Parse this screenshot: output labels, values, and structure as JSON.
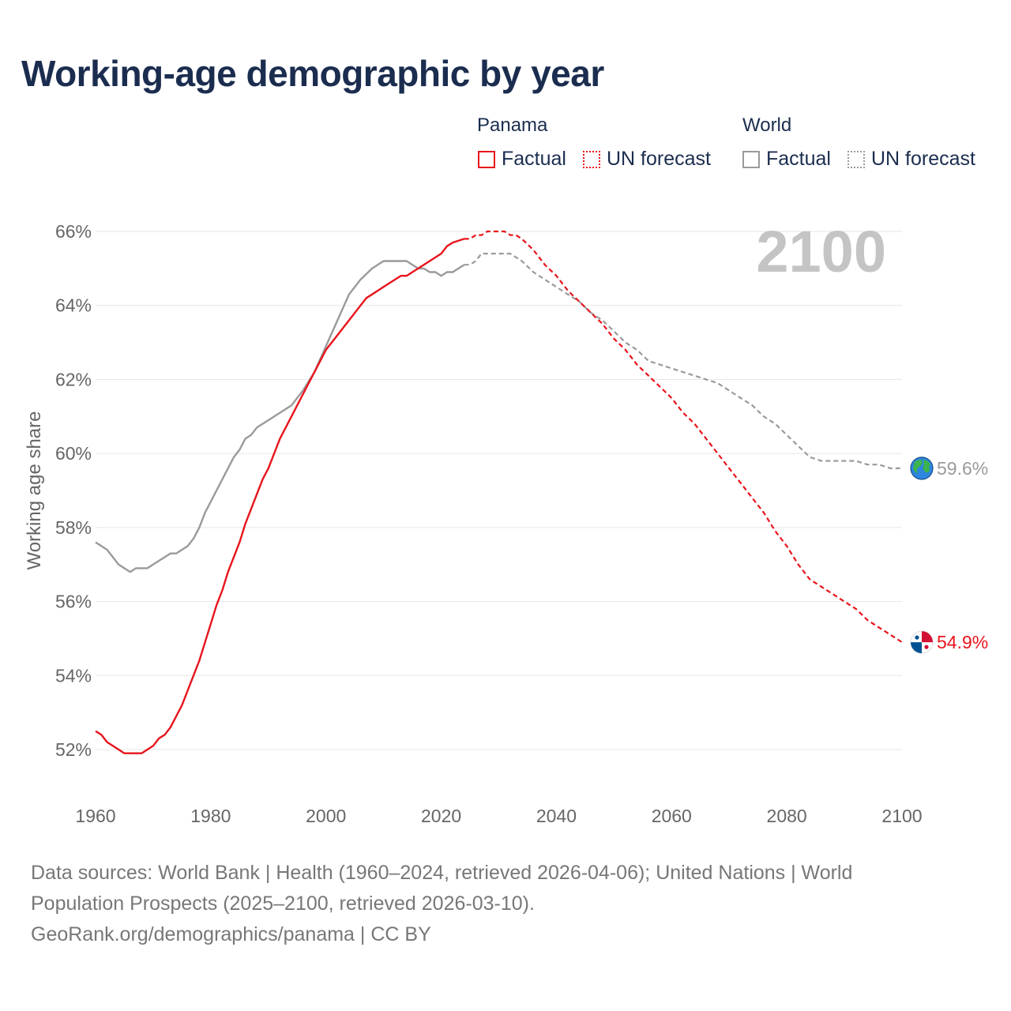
{
  "title": "Working-age demographic by year",
  "legend": {
    "panama_title": "Panama",
    "world_title": "World",
    "panama_factual": "Factual",
    "panama_forecast": "UN forecast",
    "world_factual": "Factual",
    "world_forecast": "UN forecast"
  },
  "colors": {
    "panama": "#e8141c",
    "world": "#9a9a9a",
    "grid": "#e6e6e6",
    "axis_text": "#666666",
    "year_label": "#c4c4c4"
  },
  "footer": {
    "line1": "Data sources: World Bank | Health (1960–2024, retrieved 2026-04-06); United Nations | World",
    "line2": "Population Prospects (2025–2100, retrieved 2026-03-10).",
    "line3": "GeoRank.org/demographics/panama | CC BY"
  },
  "chart_data": {
    "type": "line",
    "title": "Working-age demographic by year",
    "ylabel": "Working age share",
    "xlabel": "",
    "xlim": [
      1960,
      2100
    ],
    "ylim": [
      51,
      66.5
    ],
    "x_ticks": [
      1960,
      1980,
      2000,
      2020,
      2040,
      2060,
      2080,
      2100
    ],
    "y_ticks": [
      52,
      54,
      56,
      58,
      60,
      62,
      64,
      66
    ],
    "y_tick_labels": [
      "52%",
      "54%",
      "56%",
      "58%",
      "60%",
      "62%",
      "64%",
      "66%"
    ],
    "x_tick_labels": [
      "1960",
      "1980",
      "2000",
      "2020",
      "2040",
      "2060",
      "2080",
      "2100"
    ],
    "current_year_label": "2100",
    "series": [
      {
        "name": "Panama",
        "factual": {
          "x": [
            1960,
            1961,
            1962,
            1963,
            1964,
            1965,
            1966,
            1967,
            1968,
            1969,
            1970,
            1971,
            1972,
            1973,
            1974,
            1975,
            1976,
            1977,
            1978,
            1979,
            1980,
            1981,
            1982,
            1983,
            1984,
            1985,
            1986,
            1987,
            1988,
            1989,
            1990,
            1992,
            1994,
            1996,
            1998,
            2000,
            2002,
            2004,
            2006,
            2007,
            2008,
            2010,
            2012,
            2013,
            2014,
            2016,
            2018,
            2020,
            2021,
            2022,
            2024
          ],
          "y": [
            52.5,
            52.4,
            52.2,
            52.1,
            52.0,
            51.9,
            51.9,
            51.9,
            51.9,
            52.0,
            52.1,
            52.3,
            52.4,
            52.6,
            52.9,
            53.2,
            53.6,
            54.0,
            54.4,
            54.9,
            55.4,
            55.9,
            56.3,
            56.8,
            57.2,
            57.6,
            58.1,
            58.5,
            58.9,
            59.3,
            59.6,
            60.4,
            61.0,
            61.6,
            62.2,
            62.8,
            63.2,
            63.6,
            64.0,
            64.2,
            64.3,
            64.5,
            64.7,
            64.8,
            64.8,
            65.0,
            65.2,
            65.4,
            65.6,
            65.7,
            65.8
          ]
        },
        "forecast": {
          "x": [
            2024,
            2025,
            2026,
            2027,
            2028,
            2029,
            2030,
            2031,
            2032,
            2033,
            2034,
            2036,
            2038,
            2040,
            2042,
            2044,
            2046,
            2048,
            2050,
            2052,
            2054,
            2056,
            2058,
            2060,
            2062,
            2064,
            2066,
            2068,
            2070,
            2072,
            2074,
            2076,
            2078,
            2080,
            2082,
            2084,
            2086,
            2088,
            2090,
            2092,
            2094,
            2096,
            2098,
            2100
          ],
          "y": [
            65.8,
            65.8,
            65.9,
            65.9,
            66.0,
            66.0,
            66.0,
            66.0,
            65.9,
            65.9,
            65.8,
            65.5,
            65.1,
            64.8,
            64.4,
            64.1,
            63.8,
            63.5,
            63.1,
            62.8,
            62.4,
            62.1,
            61.8,
            61.5,
            61.1,
            60.8,
            60.4,
            60.0,
            59.6,
            59.2,
            58.8,
            58.4,
            57.9,
            57.5,
            57.0,
            56.6,
            56.4,
            56.2,
            56.0,
            55.8,
            55.5,
            55.3,
            55.1,
            54.9
          ]
        },
        "end_label": "54.9%"
      },
      {
        "name": "World",
        "factual": {
          "x": [
            1960,
            1962,
            1964,
            1966,
            1967,
            1969,
            1971,
            1973,
            1974,
            1976,
            1977,
            1978,
            1979,
            1980,
            1982,
            1984,
            1985,
            1986,
            1987,
            1988,
            1990,
            1992,
            1994,
            1996,
            1998,
            2000,
            2002,
            2004,
            2006,
            2008,
            2010,
            2012,
            2014,
            2015,
            2016,
            2017,
            2018,
            2019,
            2020,
            2021,
            2022,
            2023,
            2024
          ],
          "y": [
            57.6,
            57.4,
            57.0,
            56.8,
            56.9,
            56.9,
            57.1,
            57.3,
            57.3,
            57.5,
            57.7,
            58.0,
            58.4,
            58.7,
            59.3,
            59.9,
            60.1,
            60.4,
            60.5,
            60.7,
            60.9,
            61.1,
            61.3,
            61.7,
            62.2,
            62.9,
            63.6,
            64.3,
            64.7,
            65.0,
            65.2,
            65.2,
            65.2,
            65.1,
            65.0,
            65.0,
            64.9,
            64.9,
            64.8,
            64.9,
            64.9,
            65.0,
            65.1
          ]
        },
        "forecast": {
          "x": [
            2024,
            2025,
            2026,
            2027,
            2028,
            2029,
            2030,
            2031,
            2032,
            2033,
            2034,
            2036,
            2038,
            2040,
            2042,
            2044,
            2046,
            2048,
            2050,
            2052,
            2054,
            2056,
            2058,
            2060,
            2062,
            2064,
            2066,
            2068,
            2070,
            2072,
            2074,
            2076,
            2078,
            2080,
            2082,
            2084,
            2086,
            2088,
            2090,
            2092,
            2094,
            2096,
            2098,
            2100
          ],
          "y": [
            65.1,
            65.1,
            65.2,
            65.4,
            65.4,
            65.4,
            65.4,
            65.4,
            65.4,
            65.3,
            65.2,
            64.9,
            64.7,
            64.5,
            64.3,
            64.1,
            63.8,
            63.6,
            63.3,
            63.0,
            62.8,
            62.5,
            62.4,
            62.3,
            62.2,
            62.1,
            62.0,
            61.9,
            61.7,
            61.5,
            61.3,
            61.0,
            60.8,
            60.5,
            60.2,
            59.9,
            59.8,
            59.8,
            59.8,
            59.8,
            59.7,
            59.7,
            59.6,
            59.6
          ]
        },
        "end_label": "59.6%"
      }
    ]
  }
}
